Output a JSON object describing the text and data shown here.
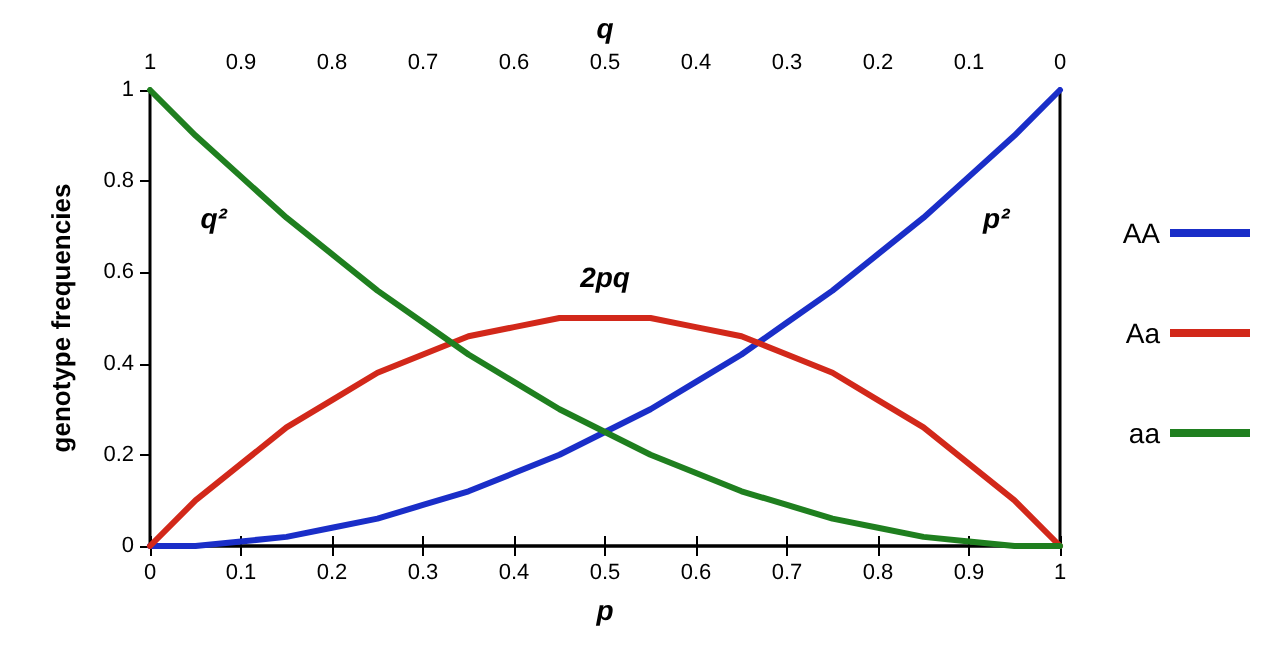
{
  "chart_data": {
    "type": "line",
    "xlabel": "p",
    "x2label": "q",
    "ylabel": "genotype frequencies",
    "x": [
      0,
      0.05,
      0.1,
      0.15,
      0.2,
      0.25,
      0.3,
      0.35,
      0.4,
      0.45,
      0.5,
      0.55,
      0.6,
      0.65,
      0.7,
      0.75,
      0.8,
      0.85,
      0.9,
      0.95,
      1
    ],
    "series": [
      {
        "name": "AA",
        "color": "#1a2ec8",
        "values": [
          0,
          0,
          0.01,
          0.02,
          0.04,
          0.06,
          0.09,
          0.12,
          0.16,
          0.2,
          0.25,
          0.3,
          0.36,
          0.42,
          0.49,
          0.56,
          0.64,
          0.72,
          0.81,
          0.9,
          1
        ]
      },
      {
        "name": "Aa",
        "color": "#d2281a",
        "values": [
          0,
          0.1,
          0.18,
          0.26,
          0.32,
          0.38,
          0.42,
          0.46,
          0.48,
          0.5,
          0.5,
          0.5,
          0.48,
          0.46,
          0.42,
          0.38,
          0.32,
          0.26,
          0.18,
          0.1,
          0
        ]
      },
      {
        "name": "aa",
        "color": "#1f7f1f",
        "values": [
          1,
          0.9,
          0.81,
          0.72,
          0.64,
          0.56,
          0.49,
          0.42,
          0.36,
          0.3,
          0.25,
          0.2,
          0.16,
          0.12,
          0.09,
          0.06,
          0.04,
          0.02,
          0.01,
          0,
          0
        ]
      }
    ],
    "xlim": [
      0,
      1
    ],
    "xticks": [
      0,
      0.1,
      0.2,
      0.3,
      0.4,
      0.5,
      0.6,
      0.7,
      0.8,
      0.9,
      1
    ],
    "x2lim": [
      1,
      0
    ],
    "x2ticks": [
      1,
      0.9,
      0.8,
      0.7,
      0.6,
      0.5,
      0.4,
      0.3,
      0.2,
      0.1,
      0
    ],
    "ylim": [
      0,
      1
    ],
    "yticks": [
      0,
      0.2,
      0.4,
      0.6,
      0.8,
      1
    ],
    "annotations": [
      "q²",
      "2pq",
      "p²"
    ],
    "grid": false,
    "legend": "right",
    "marker": "none",
    "line_style": "solid"
  }
}
